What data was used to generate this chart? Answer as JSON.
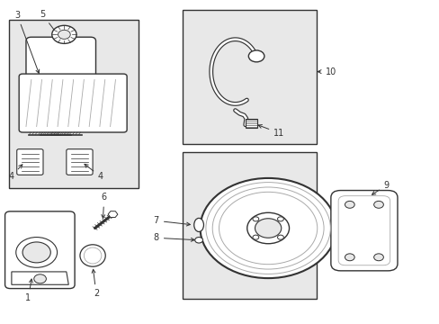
{
  "bg_color": "#ffffff",
  "line_color": "#333333",
  "light_gray": "#e8e8e8",
  "mid_gray": "#aaaaaa"
}
